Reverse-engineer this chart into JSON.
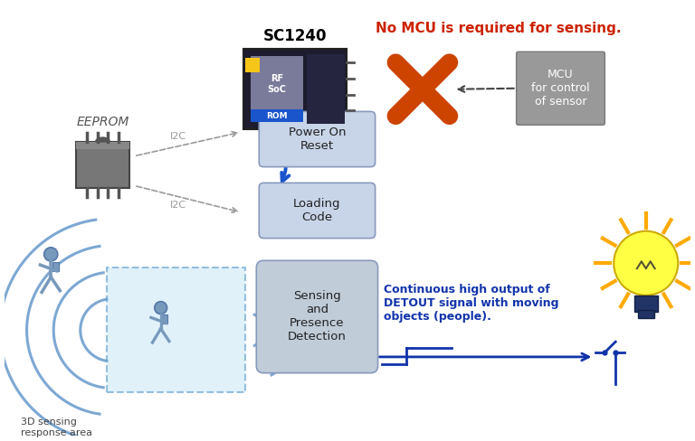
{
  "bg_color": "#ffffff",
  "title_sc1240": "SC1240",
  "title_no_mcu": "No MCU is required for sensing.",
  "label_eeprom": "EEPROM",
  "label_i2c_1": "I2C",
  "label_i2c_2": "I2C",
  "label_power_on_reset": "Power On\nReset",
  "label_loading_code": "Loading\nCode",
  "label_sensing": "Sensing\nand\nPresence\nDetection",
  "label_3d_sensing": "3D sensing\nresponse area",
  "label_mcu": "MCU\nfor control\nof sensor",
  "label_continuous": "Continuous high output of\nDETOUT signal with moving\nobjects (people).",
  "label_rf_soc": "RF\nSoC",
  "label_rom": "ROM",
  "chip_bg": "#1c1c2e",
  "chip_inner_bg": "#3a3a5c",
  "rom_color": "#1a55cc",
  "yellow_square": "#f5c518",
  "blue_arrow_color": "#1a55cc",
  "box_fill": "#c8d4e8",
  "box_edge": "#8899bb",
  "sensing_box_fill": "#c0ccd8",
  "mcu_fill": "#999999",
  "mcu_edge": "#777777",
  "cross_color": "#cc4400",
  "cross_fill": "#cc5500",
  "signal_color": "#1133aa",
  "wave_color": "#6699cc",
  "wave_fill": "#aaccee",
  "person_color": "#7799bb",
  "person_outline": "#5577aa",
  "sensing_area_fill": "#cce8f8",
  "sensing_area_edge": "#5599cc",
  "sun_ray_color": "#ffaa00",
  "bulb_glass": "#ffff44",
  "bulb_base": "#223366",
  "dashed_arrow_color": "#999999"
}
